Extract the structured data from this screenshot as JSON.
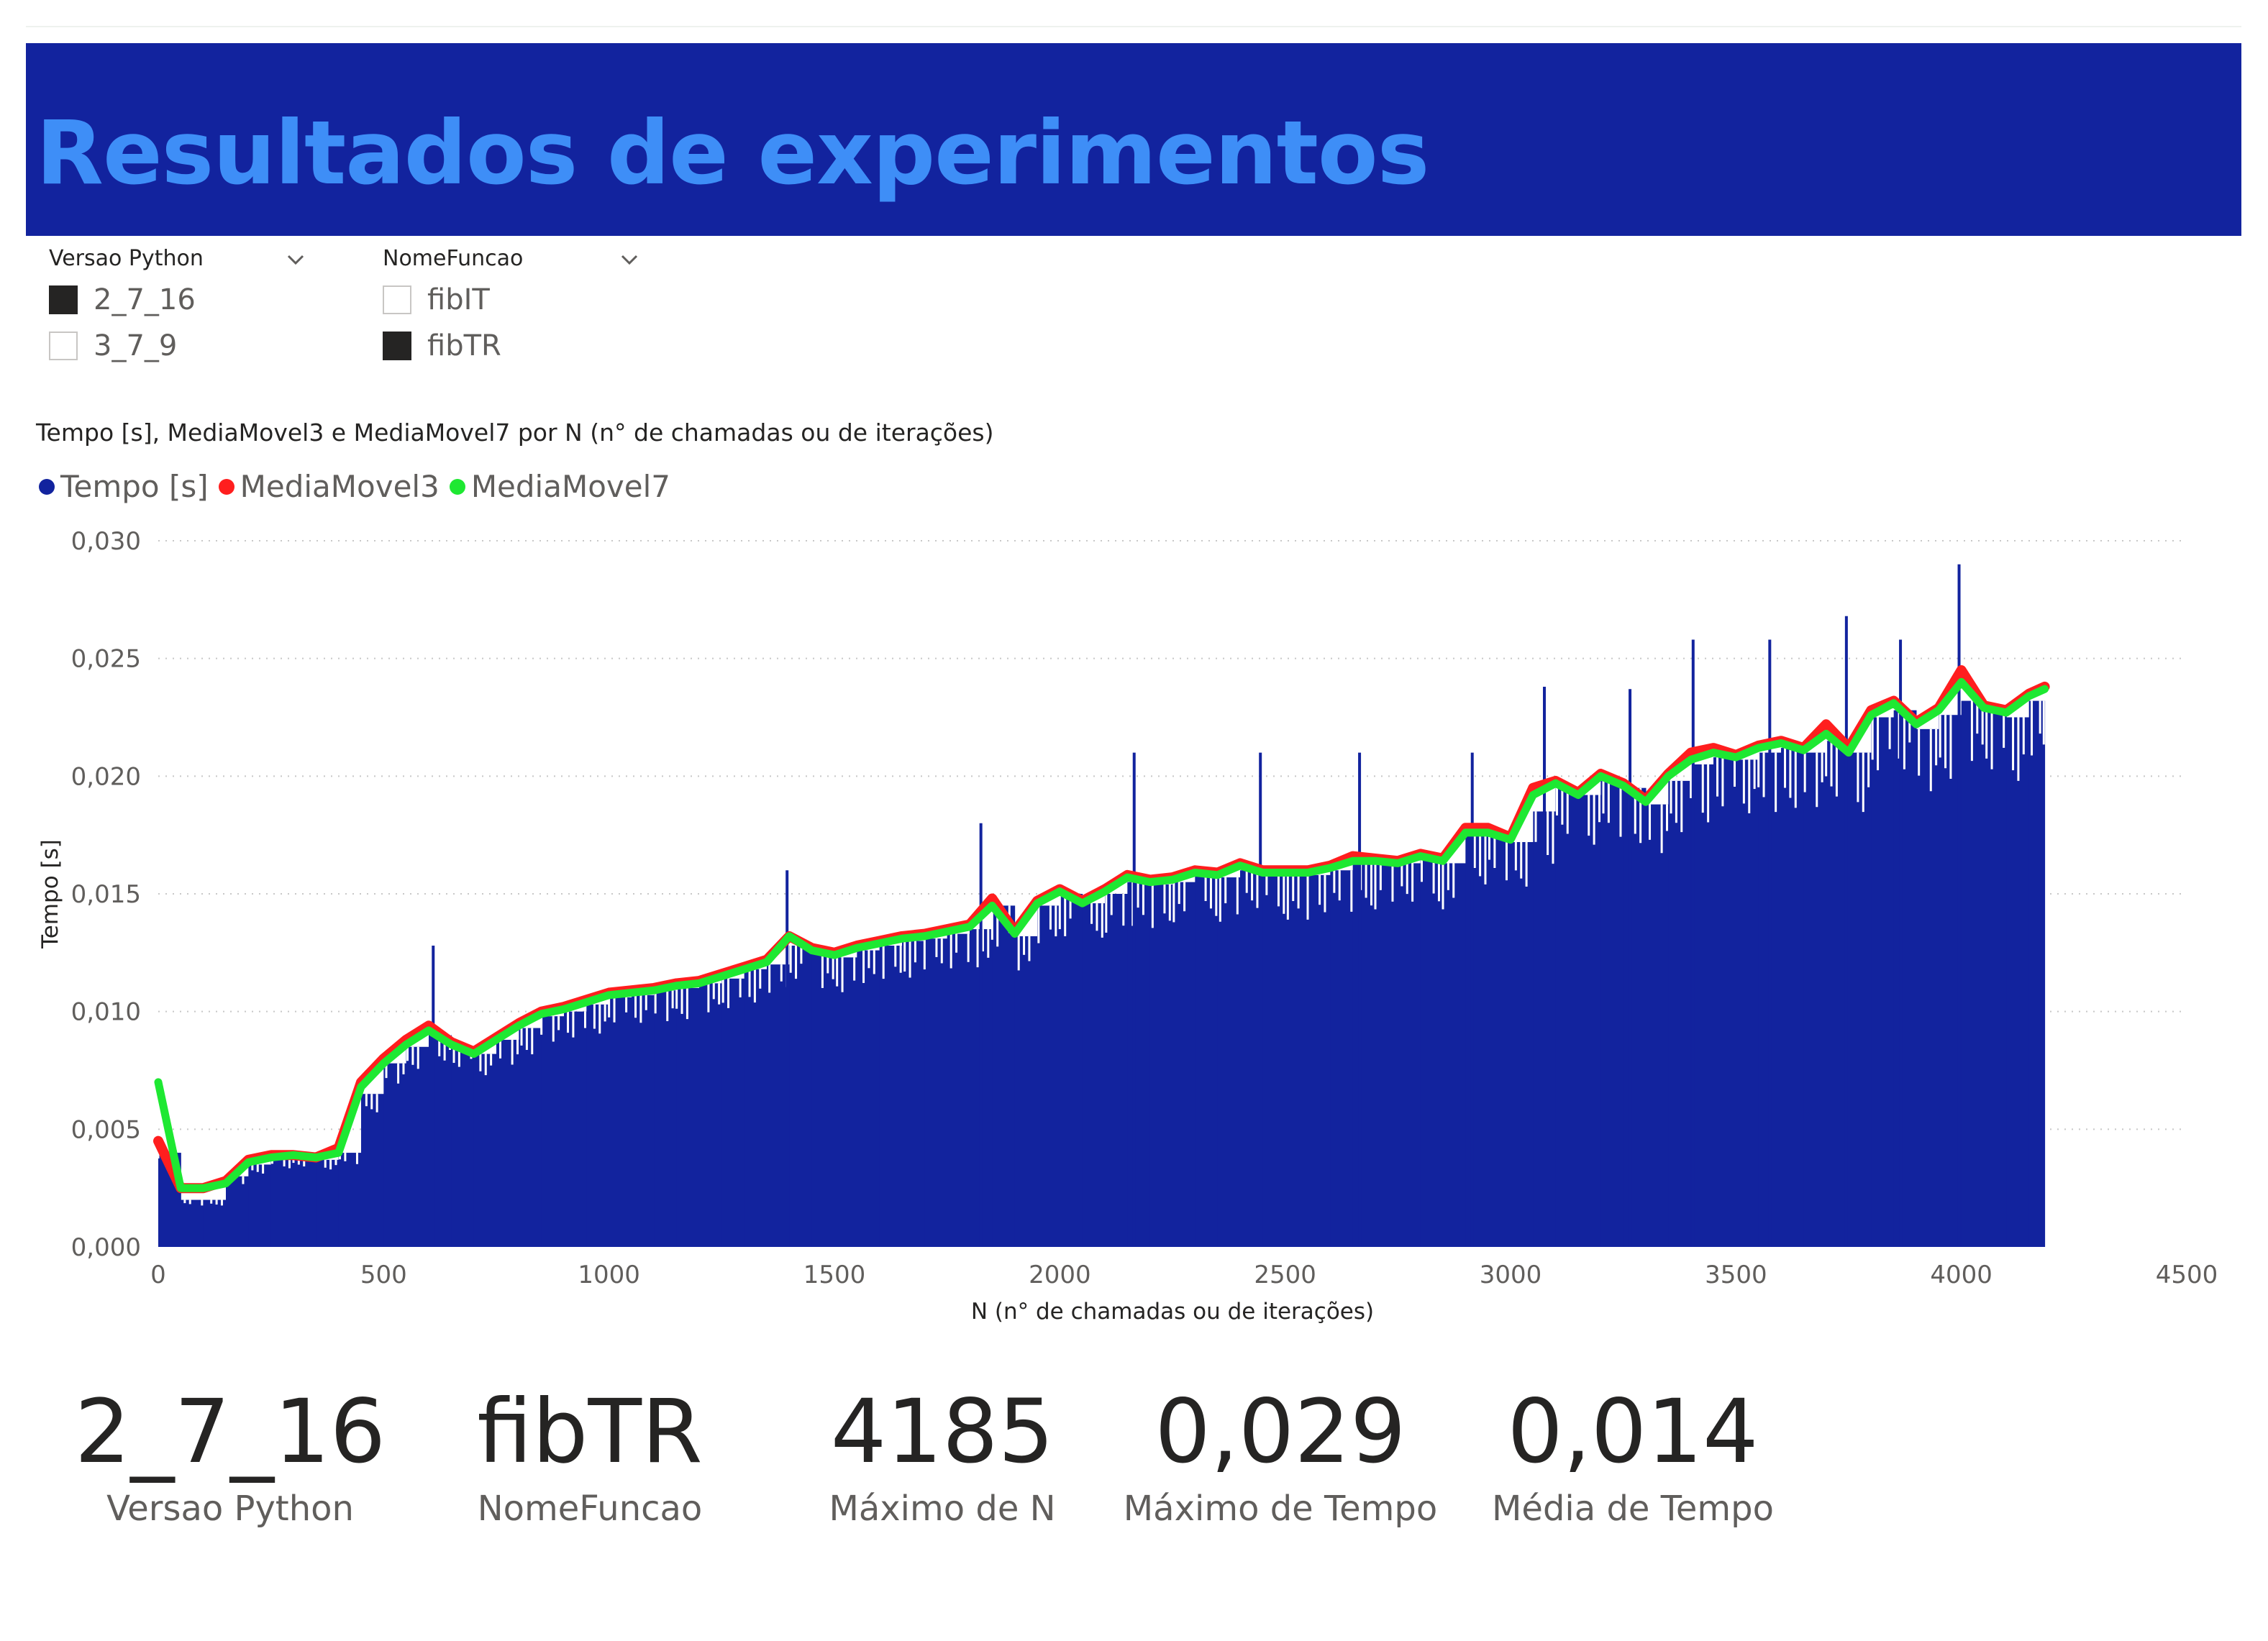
{
  "header": {
    "title": "Resultados de experimentos"
  },
  "slicers": [
    {
      "title": "Versao Python",
      "options": [
        {
          "label": "2_7_16",
          "checked": true
        },
        {
          "label": "3_7_9",
          "checked": false
        }
      ]
    },
    {
      "title": "NomeFuncao",
      "options": [
        {
          "label": "fibIT",
          "checked": false
        },
        {
          "label": "fibTR",
          "checked": true
        }
      ]
    }
  ],
  "chart": {
    "title": "Tempo [s], MediaMovel3 e MediaMovel7 por N (n° de chamadas ou de iterações)"
  },
  "chart_data": {
    "type": "bar",
    "title": "Tempo [s], MediaMovel3 e MediaMovel7 por N (n° de chamadas ou de iterações)",
    "xlabel": "N (n° de chamadas ou de iterações)",
    "ylabel": "Tempo [s]",
    "xlim": [
      0,
      4500
    ],
    "ylim": [
      0,
      0.03
    ],
    "x_ticks": [
      "0",
      "500",
      "1000",
      "1500",
      "2000",
      "2500",
      "3000",
      "3500",
      "4000",
      "4500"
    ],
    "y_ticks": [
      "0,000",
      "0,005",
      "0,010",
      "0,015",
      "0,020",
      "0,025",
      "0,030"
    ],
    "grid": true,
    "legend_position": "top-left",
    "series": [
      {
        "name": "Tempo [s]",
        "type": "bar",
        "color": "#12239e",
        "x": [
          0,
          50,
          100,
          150,
          200,
          250,
          300,
          350,
          400,
          450,
          500,
          550,
          600,
          650,
          700,
          750,
          800,
          850,
          900,
          950,
          1000,
          1050,
          1100,
          1150,
          1200,
          1250,
          1300,
          1350,
          1400,
          1450,
          1500,
          1550,
          1600,
          1650,
          1700,
          1750,
          1800,
          1850,
          1900,
          1950,
          2000,
          2050,
          2100,
          2150,
          2200,
          2250,
          2300,
          2350,
          2400,
          2450,
          2500,
          2550,
          2600,
          2650,
          2700,
          2750,
          2800,
          2850,
          2900,
          2950,
          3000,
          3050,
          3100,
          3150,
          3200,
          3250,
          3300,
          3350,
          3400,
          3450,
          3500,
          3550,
          3600,
          3650,
          3700,
          3750,
          3800,
          3850,
          3900,
          3950,
          4000,
          4050,
          4100,
          4150,
          4185
        ],
        "values": [
          0.004,
          0.002,
          0.002,
          0.003,
          0.0035,
          0.0038,
          0.0038,
          0.0037,
          0.004,
          0.0065,
          0.0078,
          0.0085,
          0.009,
          0.0085,
          0.0082,
          0.0088,
          0.0093,
          0.0098,
          0.01,
          0.0103,
          0.0106,
          0.0107,
          0.0109,
          0.011,
          0.0112,
          0.0114,
          0.0118,
          0.012,
          0.0128,
          0.0125,
          0.0123,
          0.0126,
          0.0128,
          0.013,
          0.0131,
          0.0133,
          0.0135,
          0.0145,
          0.0132,
          0.0145,
          0.015,
          0.0146,
          0.015,
          0.0155,
          0.0154,
          0.0155,
          0.0158,
          0.0157,
          0.016,
          0.0159,
          0.0158,
          0.0158,
          0.016,
          0.0163,
          0.0163,
          0.0163,
          0.0165,
          0.0163,
          0.0175,
          0.0175,
          0.0172,
          0.0185,
          0.0195,
          0.0192,
          0.0198,
          0.0195,
          0.0188,
          0.0198,
          0.0205,
          0.0208,
          0.0207,
          0.021,
          0.0212,
          0.021,
          0.0215,
          0.021,
          0.0225,
          0.0228,
          0.022,
          0.0226,
          0.0232,
          0.0228,
          0.0225,
          0.0232,
          0.0235
        ]
      },
      {
        "name": "MediaMovel3",
        "type": "line",
        "color": "#ff1e1e",
        "x": [
          0,
          50,
          100,
          150,
          200,
          250,
          300,
          350,
          400,
          450,
          500,
          550,
          600,
          650,
          700,
          750,
          800,
          850,
          900,
          950,
          1000,
          1050,
          1100,
          1150,
          1200,
          1250,
          1300,
          1350,
          1400,
          1450,
          1500,
          1550,
          1600,
          1650,
          1700,
          1750,
          1800,
          1850,
          1900,
          1950,
          2000,
          2050,
          2100,
          2150,
          2200,
          2250,
          2300,
          2350,
          2400,
          2450,
          2500,
          2550,
          2600,
          2650,
          2700,
          2750,
          2800,
          2850,
          2900,
          2950,
          3000,
          3050,
          3100,
          3150,
          3200,
          3250,
          3300,
          3350,
          3400,
          3450,
          3500,
          3550,
          3600,
          3650,
          3700,
          3750,
          3800,
          3850,
          3900,
          3950,
          4000,
          4050,
          4100,
          4150,
          4185
        ],
        "values": [
          0.0045,
          0.0025,
          0.0025,
          0.0028,
          0.0037,
          0.0039,
          0.0039,
          0.0038,
          0.0042,
          0.007,
          0.008,
          0.0088,
          0.0094,
          0.0087,
          0.0083,
          0.0089,
          0.0095,
          0.01,
          0.0102,
          0.0105,
          0.0108,
          0.0109,
          0.011,
          0.0112,
          0.0113,
          0.0116,
          0.0119,
          0.0122,
          0.0132,
          0.0127,
          0.0125,
          0.0128,
          0.013,
          0.0132,
          0.0133,
          0.0135,
          0.0137,
          0.0148,
          0.0134,
          0.0147,
          0.0152,
          0.0147,
          0.0152,
          0.0158,
          0.0156,
          0.0157,
          0.016,
          0.0159,
          0.0163,
          0.016,
          0.016,
          0.016,
          0.0162,
          0.0166,
          0.0165,
          0.0164,
          0.0167,
          0.0165,
          0.0178,
          0.0178,
          0.0174,
          0.0195,
          0.0198,
          0.0193,
          0.0201,
          0.0197,
          0.019,
          0.0201,
          0.021,
          0.0212,
          0.0209,
          0.0213,
          0.0215,
          0.0212,
          0.0222,
          0.0212,
          0.0228,
          0.0232,
          0.0223,
          0.0229,
          0.0245,
          0.023,
          0.0228,
          0.0235,
          0.0238
        ]
      },
      {
        "name": "MediaMovel7",
        "type": "line",
        "color": "#1ee832",
        "x": [
          0,
          50,
          100,
          150,
          200,
          250,
          300,
          350,
          400,
          450,
          500,
          550,
          600,
          650,
          700,
          750,
          800,
          850,
          900,
          950,
          1000,
          1050,
          1100,
          1150,
          1200,
          1250,
          1300,
          1350,
          1400,
          1450,
          1500,
          1550,
          1600,
          1650,
          1700,
          1750,
          1800,
          1850,
          1900,
          1950,
          2000,
          2050,
          2100,
          2150,
          2200,
          2250,
          2300,
          2350,
          2400,
          2450,
          2500,
          2550,
          2600,
          2650,
          2700,
          2750,
          2800,
          2850,
          2900,
          2950,
          3000,
          3050,
          3100,
          3150,
          3200,
          3250,
          3300,
          3350,
          3400,
          3450,
          3500,
          3550,
          3600,
          3650,
          3700,
          3750,
          3800,
          3850,
          3900,
          3950,
          4000,
          4050,
          4100,
          4150,
          4185
        ],
        "values": [
          0.007,
          0.0025,
          0.0025,
          0.0027,
          0.0036,
          0.0038,
          0.0039,
          0.0038,
          0.004,
          0.0068,
          0.0078,
          0.0086,
          0.0092,
          0.0086,
          0.0082,
          0.0088,
          0.0094,
          0.0099,
          0.0101,
          0.0104,
          0.0107,
          0.0108,
          0.0109,
          0.0111,
          0.0112,
          0.0115,
          0.0118,
          0.0121,
          0.0132,
          0.0126,
          0.0124,
          0.0127,
          0.0129,
          0.0131,
          0.0132,
          0.0134,
          0.0136,
          0.0145,
          0.0133,
          0.0146,
          0.0151,
          0.0146,
          0.0151,
          0.0157,
          0.0155,
          0.0156,
          0.0159,
          0.0158,
          0.0162,
          0.0159,
          0.0159,
          0.0159,
          0.0161,
          0.0164,
          0.0164,
          0.0163,
          0.0166,
          0.0164,
          0.0176,
          0.0176,
          0.0173,
          0.0192,
          0.0197,
          0.0192,
          0.02,
          0.0196,
          0.0189,
          0.02,
          0.0207,
          0.021,
          0.0208,
          0.0212,
          0.0214,
          0.0211,
          0.0218,
          0.021,
          0.0226,
          0.0231,
          0.0222,
          0.0228,
          0.024,
          0.0229,
          0.0227,
          0.0234,
          0.0237
        ]
      }
    ],
    "spikes": [
      {
        "x": 610,
        "value": 0.0128
      },
      {
        "x": 1395,
        "value": 0.016
      },
      {
        "x": 1825,
        "value": 0.018
      },
      {
        "x": 2165,
        "value": 0.021
      },
      {
        "x": 2445,
        "value": 0.021
      },
      {
        "x": 2665,
        "value": 0.021
      },
      {
        "x": 2915,
        "value": 0.021
      },
      {
        "x": 3075,
        "value": 0.0238
      },
      {
        "x": 3265,
        "value": 0.0237
      },
      {
        "x": 3405,
        "value": 0.0258
      },
      {
        "x": 3575,
        "value": 0.0258
      },
      {
        "x": 3745,
        "value": 0.0268
      },
      {
        "x": 3865,
        "value": 0.0258
      },
      {
        "x": 3995,
        "value": 0.029
      }
    ]
  },
  "cards": [
    {
      "value": "2_7_16",
      "label": "Versao Python"
    },
    {
      "value": "fibTR",
      "label": "NomeFuncao"
    },
    {
      "value": "4185",
      "label": "Máximo de N"
    },
    {
      "value": "0,029",
      "label": "Máximo de Tempo"
    },
    {
      "value": "0,014",
      "label": "Média de Tempo"
    }
  ]
}
